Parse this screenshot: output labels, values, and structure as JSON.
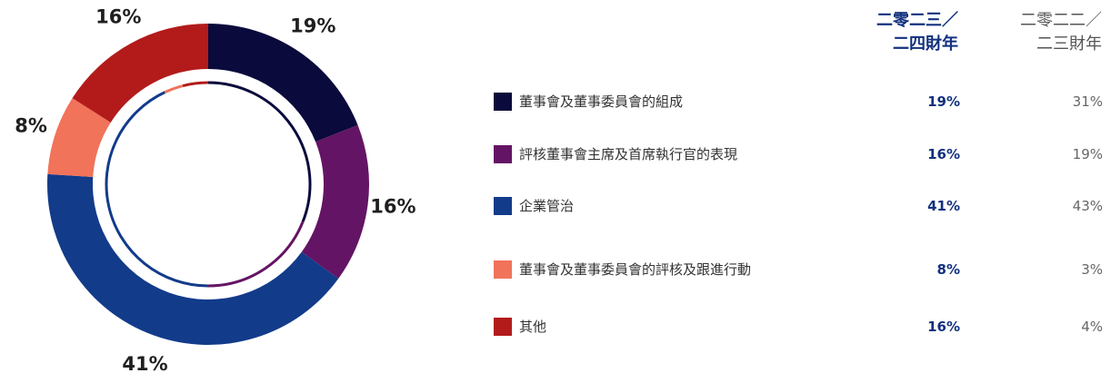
{
  "chart_data": {
    "type": "pie",
    "donut": true,
    "categories": [
      "董事會及董事委員會的組成",
      "評核董事會主席及首席執行官的表現",
      "企業管治",
      "董事會及董事委員會的評核及跟進行動",
      "其他"
    ],
    "colors": [
      "#0a0a3c",
      "#641464",
      "#123b8a",
      "#f0735a",
      "#b31b1b"
    ],
    "series": [
      {
        "name": "二零二三／二四財年",
        "values": [
          19,
          16,
          41,
          8,
          16
        ]
      },
      {
        "name": "二零二二／二三財年",
        "values": [
          31,
          19,
          43,
          3,
          4
        ]
      }
    ],
    "slice_labels": [
      "19%",
      "16%",
      "41%",
      "8%",
      "16%"
    ]
  },
  "header": {
    "current_line1": "二零二三／",
    "current_line2": "二四財年",
    "previous_line1": "二零二二／",
    "previous_line2": "二三財年"
  },
  "legend": [
    {
      "label": "董事會及董事委員會的組成",
      "current": "19%",
      "previous": "31%"
    },
    {
      "label": "評核董事會主席及首席執行官的表現",
      "current": "16%",
      "previous": "19%"
    },
    {
      "label": "企業管治",
      "current": "41%",
      "previous": "43%"
    },
    {
      "label": "董事會及董事委員會的評核及跟進行動",
      "current": "8%",
      "previous": "3%"
    },
    {
      "label": "其他",
      "current": "16%",
      "previous": "4%"
    }
  ]
}
